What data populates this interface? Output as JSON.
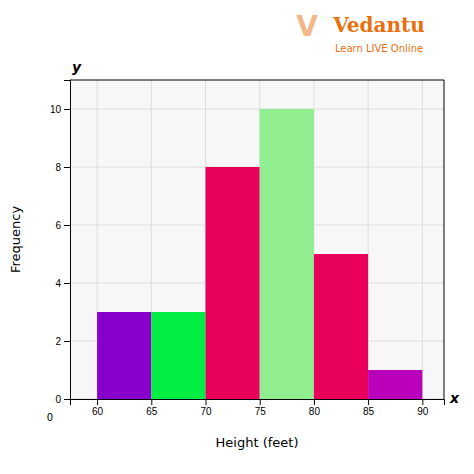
{
  "chart_data": {
    "type": "histogram",
    "bins": [
      60,
      65,
      70,
      75,
      80,
      85,
      90
    ],
    "values": [
      3,
      3,
      8,
      10,
      5,
      1
    ],
    "colors": [
      "#8800CC",
      "#00EE44",
      "#E8005A",
      "#90EE90",
      "#E8005A",
      "#BB00BB"
    ],
    "xlim": [
      57.5,
      92
    ],
    "ylim": [
      0,
      11
    ],
    "xticks": [
      60,
      65,
      70,
      75,
      80,
      85,
      90
    ],
    "yticks": [
      0,
      2,
      4,
      6,
      8,
      10
    ],
    "grid": true,
    "xlabel": "Height (feet)",
    "ylabel": "Frequency",
    "annotations": [
      "y",
      "x",
      "0",
      "Vedantu",
      "Learn LIVE Online",
      "V"
    ]
  }
}
